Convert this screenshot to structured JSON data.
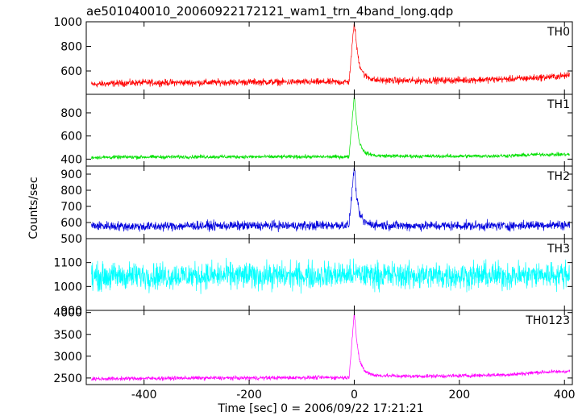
{
  "chart_data": {
    "type": "line",
    "title": "ae501040010_20060922172121_wam1_trn_4band_long.qdp",
    "xlabel": "Time [sec] 0 = 2006/09/22 17:21:21",
    "ylabel": "Counts/sec",
    "xlim": [
      -510,
      415
    ],
    "x_ticks": [
      -400,
      -200,
      0,
      200,
      400
    ],
    "grid": false,
    "panels": [
      {
        "name": "TH0",
        "color": "#ff0000",
        "ylim": [
          410,
          1000
        ],
        "y_ticks": [
          600,
          800,
          1000
        ],
        "points": [
          [
            -500,
            490
          ],
          [
            -450,
            500
          ],
          [
            -400,
            505
          ],
          [
            -300,
            505
          ],
          [
            -200,
            510
          ],
          [
            -100,
            510
          ],
          [
            -10,
            510
          ],
          [
            0,
            1000
          ],
          [
            5,
            780
          ],
          [
            10,
            650
          ],
          [
            20,
            560
          ],
          [
            40,
            525
          ],
          [
            100,
            520
          ],
          [
            200,
            525
          ],
          [
            300,
            535
          ],
          [
            350,
            545
          ],
          [
            400,
            560
          ],
          [
            410,
            570
          ]
        ],
        "noise": 30
      },
      {
        "name": "TH1",
        "color": "#00e000",
        "ylim": [
          340,
          960
        ],
        "y_ticks": [
          400,
          600,
          800
        ],
        "points": [
          [
            -500,
            415
          ],
          [
            -400,
            418
          ],
          [
            -300,
            420
          ],
          [
            -200,
            420
          ],
          [
            -100,
            420
          ],
          [
            -10,
            420
          ],
          [
            0,
            950
          ],
          [
            5,
            700
          ],
          [
            10,
            540
          ],
          [
            20,
            455
          ],
          [
            40,
            430
          ],
          [
            100,
            425
          ],
          [
            200,
            425
          ],
          [
            300,
            430
          ],
          [
            350,
            440
          ],
          [
            400,
            440
          ],
          [
            410,
            440
          ]
        ],
        "noise": 18
      },
      {
        "name": "TH2",
        "color": "#0000dd",
        "ylim": [
          500,
          950
        ],
        "y_ticks": [
          500,
          600,
          700,
          800,
          900
        ],
        "points": [
          [
            -500,
            580
          ],
          [
            -400,
            575
          ],
          [
            -300,
            580
          ],
          [
            -200,
            580
          ],
          [
            -100,
            580
          ],
          [
            -10,
            585
          ],
          [
            0,
            950
          ],
          [
            5,
            740
          ],
          [
            10,
            650
          ],
          [
            20,
            600
          ],
          [
            40,
            585
          ],
          [
            100,
            580
          ],
          [
            200,
            580
          ],
          [
            300,
            580
          ],
          [
            350,
            585
          ],
          [
            400,
            585
          ],
          [
            410,
            585
          ]
        ],
        "noise": 32
      },
      {
        "name": "TH3",
        "color": "#00ffff",
        "ylim": [
          900,
          1200
        ],
        "y_ticks": [
          900,
          1000,
          1100
        ],
        "points": [
          [
            -500,
            1040
          ],
          [
            -400,
            1045
          ],
          [
            -300,
            1045
          ],
          [
            -200,
            1045
          ],
          [
            -100,
            1045
          ],
          [
            0,
            1050
          ],
          [
            100,
            1045
          ],
          [
            200,
            1045
          ],
          [
            300,
            1045
          ],
          [
            400,
            1050
          ],
          [
            410,
            1050
          ]
        ],
        "noise": 62
      },
      {
        "name": "TH0123",
        "color": "#ff00ff",
        "ylim": [
          2350,
          4050
        ],
        "y_ticks": [
          2500,
          3000,
          3500,
          4000
        ],
        "points": [
          [
            -500,
            2480
          ],
          [
            -400,
            2490
          ],
          [
            -300,
            2500
          ],
          [
            -200,
            2500
          ],
          [
            -100,
            2510
          ],
          [
            -10,
            2510
          ],
          [
            0,
            4000
          ],
          [
            5,
            3300
          ],
          [
            10,
            2900
          ],
          [
            20,
            2650
          ],
          [
            40,
            2560
          ],
          [
            100,
            2540
          ],
          [
            200,
            2550
          ],
          [
            300,
            2580
          ],
          [
            350,
            2630
          ],
          [
            400,
            2650
          ],
          [
            410,
            2660
          ]
        ],
        "noise": 50
      }
    ]
  }
}
